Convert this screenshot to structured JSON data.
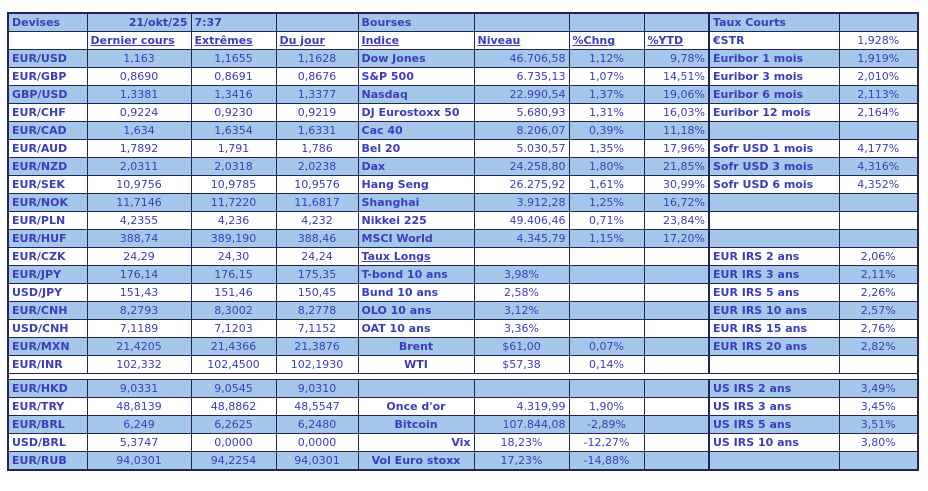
{
  "titles": {
    "devises": "Devises",
    "date": "21/okt/25",
    "time": "7:37",
    "bourses": "Bourses",
    "taux_courts": "Taux Courts"
  },
  "column_headers": {
    "dernier": "Dernier cours",
    "extremes": "Extrêmes",
    "du_jour": "Du jour",
    "indice": "Indice",
    "niveau": "Niveau",
    "chng": "%Chng",
    "ytd": "%YTD"
  },
  "estr": {
    "label": "€STR",
    "value": "1,928%"
  },
  "colors": {
    "row_blue": "#a5c8ea",
    "text": "#3c3cc0",
    "border": "#23235a"
  },
  "rows": [
    {
      "pair": "EUR/USD",
      "last": "1,163",
      "ext": "1,1655",
      "day": "1,1628",
      "idx": "Dow Jones",
      "lvl": "46.706,58",
      "chg": "1,12%",
      "ytd": "9,78%",
      "rl": "Euribor 1 mois",
      "rv": "1,919%"
    },
    {
      "pair": "EUR/GBP",
      "last": "0,8690",
      "ext": "0,8691",
      "day": "0,8676",
      "idx": "S&P 500",
      "lvl": "6.735,13",
      "chg": "1,07%",
      "ytd": "14,51%",
      "rl": "Euribor 3 mois",
      "rv": "2,010%"
    },
    {
      "pair": "GBP/USD",
      "last": "1,3381",
      "ext": "1,3416",
      "day": "1,3377",
      "idx": "Nasdaq",
      "lvl": "22.990,54",
      "chg": "1,37%",
      "ytd": "19,06%",
      "rl": "Euribor 6 mois",
      "rv": "2,113%"
    },
    {
      "pair": "EUR/CHF",
      "last": "0,9224",
      "ext": "0,9230",
      "day": "0,9219",
      "idx": "DJ Eurostoxx 50",
      "lvl": "5.680,93",
      "chg": "1,31%",
      "ytd": "16,03%",
      "rl": "Euribor 12 mois",
      "rv": "2,164%"
    },
    {
      "pair": "EUR/CAD",
      "last": "1,634",
      "ext": "1,6354",
      "day": "1,6331",
      "idx": "Cac 40",
      "lvl": "8.206,07",
      "chg": "0,39%",
      "ytd": "11,18%"
    },
    {
      "pair": "EUR/AUD",
      "last": "1,7892",
      "ext": "1,791",
      "day": "1,786",
      "idx": "Bel 20",
      "lvl": "5.030,57",
      "chg": "1,35%",
      "ytd": "17,96%",
      "rl": "Sofr USD 1 mois",
      "rv": "4,177%"
    },
    {
      "pair": "EUR/NZD",
      "last": "2,0311",
      "ext": "2,0318",
      "day": "2,0238",
      "idx": "Dax",
      "lvl": "24.258,80",
      "chg": "1,80%",
      "ytd": "21,85%",
      "rl": "Sofr USD 3 mois",
      "rv": "4,316%"
    },
    {
      "pair": "EUR/SEK",
      "last": "10,9756",
      "ext": "10,9785",
      "day": "10,9576",
      "idx": "Hang Seng",
      "lvl": "26.275,92",
      "chg": "1,61%",
      "ytd": "30,99%",
      "rl": "Sofr USD 6 mois",
      "rv": "4,352%"
    },
    {
      "pair": "EUR/NOK",
      "last": "11,7146",
      "ext": "11,7220",
      "day": "11,6817",
      "idx": "Shanghai",
      "lvl": "3.912,28",
      "chg": "1,25%",
      "ytd": "16,72%"
    },
    {
      "pair": "EUR/PLN",
      "last": "4,2355",
      "ext": "4,236",
      "day": "4,232",
      "idx": "Nikkei 225",
      "lvl": "49.406,46",
      "chg": "0,71%",
      "ytd": "23,84%"
    },
    {
      "pair": "EUR/HUF",
      "last": "388,74",
      "ext": "389,190",
      "day": "388,46",
      "idx": "MSCI World",
      "lvl": "4.345,79",
      "chg": "1,15%",
      "ytd": "17,20%"
    },
    {
      "pair": "EUR/CZK",
      "last": "24,29",
      "ext": "24,30",
      "day": "24,24",
      "idx": "Taux Longs",
      "iu": true,
      "rl": "EUR IRS 2 ans",
      "rv": "2,06%"
    },
    {
      "pair": "EUR/JPY",
      "last": "176,14",
      "ext": "176,15",
      "day": "175,35",
      "idx": "T-bond 10 ans",
      "lvl": "3,98%",
      "la": "c",
      "rl": "EUR IRS 3 ans",
      "rv": "2,11%"
    },
    {
      "pair": "USD/JPY",
      "last": "151,43",
      "ext": "151,46",
      "day": "150,45",
      "idx": "Bund 10 ans",
      "lvl": "2,58%",
      "la": "c",
      "rl": "EUR IRS 5 ans",
      "rv": "2,26%"
    },
    {
      "pair": "EUR/CNH",
      "last": "8,2793",
      "ext": "8,3002",
      "day": "8,2778",
      "idx": "OLO 10 ans",
      "lvl": "3,12%",
      "la": "c",
      "rl": "EUR IRS 10 ans",
      "rv": "2,57%"
    },
    {
      "pair": "USD/CNH",
      "last": "7,1189",
      "ext": "7,1203",
      "day": "7,1152",
      "idx": "OAT 10 ans",
      "lvl": "3,36%",
      "la": "c",
      "rl": "EUR IRS 15 ans",
      "rv": "2,76%"
    },
    {
      "pair": "EUR/MXN",
      "last": "21,4205",
      "ext": "21,4366",
      "day": "21,3876",
      "idx": "Brent",
      "ia": "c",
      "lvl": "$61,00",
      "la": "c",
      "chg": "0,07%",
      "rl": "EUR IRS 20 ans",
      "rv": "2,82%"
    },
    {
      "pair": "EUR/INR",
      "last": "102,332",
      "ext": "102,4500",
      "day": "102,1930",
      "idx": "WTI",
      "ia": "c",
      "lvl": "$57,38",
      "la": "c",
      "chg": "0,14%"
    },
    {
      "gap": true
    },
    {
      "pair": "EUR/HKD",
      "last": "9,0331",
      "ext": "9,0545",
      "day": "9,0310",
      "rl": "US IRS 2 ans",
      "rv": "3,49%"
    },
    {
      "pair": "EUR/TRY",
      "last": "48,8139",
      "ext": "48,8862",
      "day": "48,5547",
      "idx": "Once d'or",
      "ia": "c",
      "lvl": "4.319,99",
      "chg": "1,90%",
      "rl": "US IRS 3 ans",
      "rv": "3,45%"
    },
    {
      "pair": "EUR/BRL",
      "last": "6,249",
      "ext": "6,2625",
      "day": "6,2480",
      "idx": "Bitcoin",
      "ia": "c",
      "lvl": "107.844,08",
      "chg": "-2,89%",
      "rl": "US IRS 5 ans",
      "rv": "3,51%"
    },
    {
      "pair": "USD/BRL",
      "last": "5,3747",
      "ext": "0,0000",
      "day": "0,0000",
      "idx": "Vix",
      "ia": "r",
      "lvl": "18,23%",
      "la": "c",
      "chg": "-12,27%",
      "rl": "US IRS 10 ans",
      "rv": "3,80%"
    },
    {
      "pair": "EUR/RUB",
      "last": "94,0301",
      "ext": "94,2254",
      "day": "94,0301",
      "idx": "Vol Euro stoxx",
      "ia": "c",
      "lvl": "17,23%",
      "la": "c",
      "chg": "-14,88%"
    }
  ]
}
